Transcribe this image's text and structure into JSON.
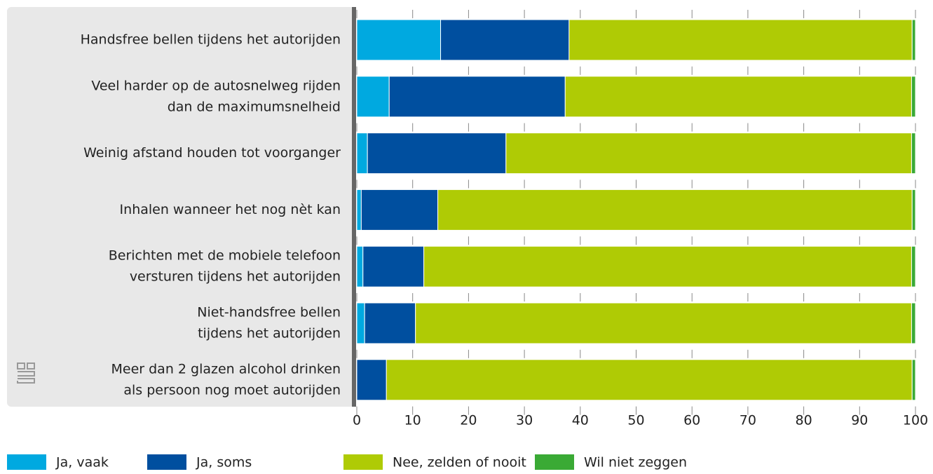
{
  "chart_data": {
    "type": "stacked_barh",
    "categories": [
      [
        "Handsfree bellen tijdens het autorijden"
      ],
      [
        "Veel harder op de autosnelweg rijden",
        "dan de maximumsnelheid"
      ],
      [
        "Weinig afstand houden tot voorganger"
      ],
      [
        "Inhalen wanneer het nog nèt kan"
      ],
      [
        "Berichten met de mobiele telefoon",
        "versturen tijdens het autorijden"
      ],
      [
        "Niet-handsfree bellen",
        "tijdens het autorijden"
      ],
      [
        "Meer dan 2 glazen alcohol drinken",
        "als persoon nog moet autorijden"
      ]
    ],
    "series": [
      {
        "name": "Ja, vaak",
        "color": "#00a9e0",
        "values": [
          15,
          5.8,
          1.9,
          0.8,
          1.1,
          1.4,
          0
        ]
      },
      {
        "name": "Ja, soms",
        "color": "#004f9f",
        "values": [
          23,
          31.5,
          24.8,
          13.7,
          10.9,
          9.1,
          5.3
        ]
      },
      {
        "name": "Nee, zelden of nooit",
        "color": "#afcb05",
        "values": [
          61.4,
          62,
          72.6,
          84.9,
          87.3,
          88.8,
          94.1
        ]
      },
      {
        "name": "Wil niet zeggen",
        "color": "#3aaa35",
        "values": [
          0.6,
          0.7,
          0.7,
          0.6,
          0.7,
          0.7,
          0.6
        ]
      }
    ],
    "xlim": [
      0,
      100
    ],
    "xticks": [
      0,
      10,
      20,
      30,
      40,
      50,
      60,
      70,
      80,
      90,
      100
    ],
    "legend": "bottom"
  }
}
